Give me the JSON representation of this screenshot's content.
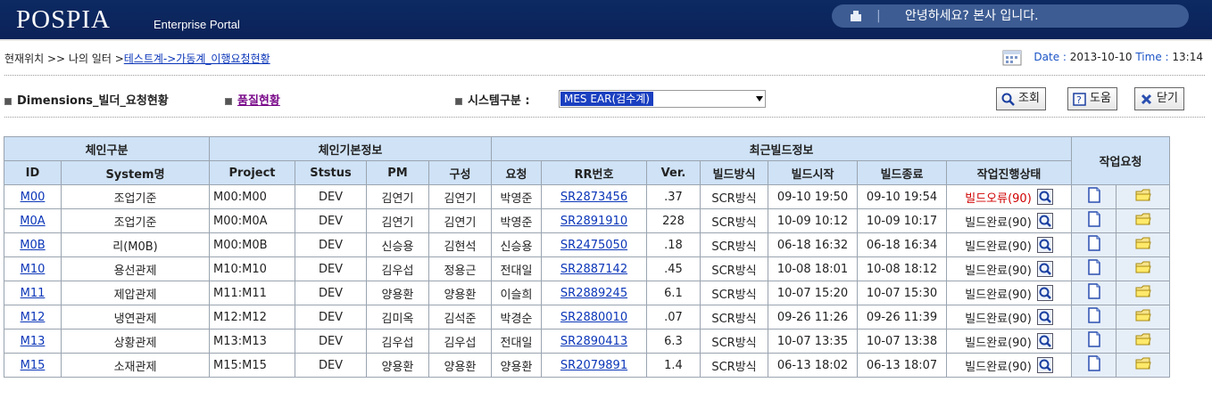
{
  "header": {
    "logo": "POSPIA",
    "logo_sub": "Enterprise Portal",
    "greeting_sep": "|",
    "greeting": "안녕하세요? 본사 입니다."
  },
  "location": {
    "prefix": "현재위치 >> 나의 일터 >",
    "link": "테스트계->가동계_이행요청현황",
    "date_label": "Date :",
    "date": "2013-10-10",
    "time_label": "Time :",
    "time": "13:14"
  },
  "toolbar": {
    "title": "Dimensions_빌더_요청현황",
    "quality_link": "품질현황",
    "system_label": "시스템구분 :",
    "system_value": "MES EAR(검수계)",
    "search_label": "조회",
    "help_label": "도움",
    "close_label": "닫기"
  },
  "table": {
    "group_headers": [
      "체인구분",
      "체인기본정보",
      "최근빌드정보",
      "작업요청"
    ],
    "columns": [
      "ID",
      "System명",
      "Project",
      "Ststus",
      "PM",
      "구성",
      "요청",
      "RR번호",
      "Ver.",
      "빌드방식",
      "빌드시작",
      "빌드종료",
      "작업진행상태"
    ],
    "rows": [
      {
        "id": "M00",
        "system": "조업기준",
        "project": "M00:M00",
        "status": "DEV",
        "pm": "김연기",
        "config": "김연기",
        "req": "박영준",
        "rr": "SR2873456",
        "ver": ".37",
        "method": "SCR방식",
        "start": "09-10 19:50",
        "end": "09-10 19:54",
        "state": "빌드오류(90)",
        "error": true
      },
      {
        "id": "M0A",
        "system": "조업기준",
        "project": "M00:M0A",
        "status": "DEV",
        "pm": "김연기",
        "config": "김연기",
        "req": "박영준",
        "rr": "SR2891910",
        "ver": "228",
        "method": "SCR방식",
        "start": "10-09 10:12",
        "end": "10-09 10:17",
        "state": "빌드완료(90)",
        "error": false
      },
      {
        "id": "M0B",
        "system": "리(M0B)",
        "project": "M00:M0B",
        "status": "DEV",
        "pm": "신승용",
        "config": "김현석",
        "req": "신승용",
        "rr": "SR2475050",
        "ver": ".18",
        "method": "SCR방식",
        "start": "06-18 16:32",
        "end": "06-18 16:34",
        "state": "빌드완료(90)",
        "error": false
      },
      {
        "id": "M10",
        "system": "용선관제",
        "project": "M10:M10",
        "status": "DEV",
        "pm": "김우섭",
        "config": "정용근",
        "req": "전대일",
        "rr": "SR2887142",
        "ver": ".45",
        "method": "SCR방식",
        "start": "10-08 18:01",
        "end": "10-08 18:12",
        "state": "빌드완료(90)",
        "error": false
      },
      {
        "id": "M11",
        "system": "제압관제",
        "project": "M11:M11",
        "status": "DEV",
        "pm": "양용환",
        "config": "양용환",
        "req": "이슬희",
        "rr": "SR2889245",
        "ver": "6.1",
        "method": "SCR방식",
        "start": "10-07 15:20",
        "end": "10-07 15:30",
        "state": "빌드완료(90)",
        "error": false
      },
      {
        "id": "M12",
        "system": "냉연관제",
        "project": "M12:M12",
        "status": "DEV",
        "pm": "김미옥",
        "config": "김석준",
        "req": "박경순",
        "rr": "SR2880010",
        "ver": ".07",
        "method": "SCR방식",
        "start": "09-26 11:26",
        "end": "09-26 11:39",
        "state": "빌드완료(90)",
        "error": false
      },
      {
        "id": "M13",
        "system": "상황관제",
        "project": "M13:M13",
        "status": "DEV",
        "pm": "김우섭",
        "config": "김우섭",
        "req": "전대일",
        "rr": "SR2890413",
        "ver": "6.3",
        "method": "SCR방식",
        "start": "10-07 13:35",
        "end": "10-07 13:38",
        "state": "빌드완료(90)",
        "error": false
      },
      {
        "id": "M15",
        "system": "소재관제",
        "project": "M15:M15",
        "status": "DEV",
        "pm": "양용환",
        "config": "양용환",
        "req": "양용환",
        "rr": "SR2079891",
        "ver": "1.4",
        "method": "SCR방식",
        "start": "06-13 18:02",
        "end": "06-13 18:07",
        "state": "빌드완료(90)",
        "error": false
      }
    ]
  },
  "colors": {
    "header_bg": "#0b2258",
    "table_header_bg": "#cfe2f6",
    "link": "#0b36b8",
    "error": "#d00000"
  }
}
